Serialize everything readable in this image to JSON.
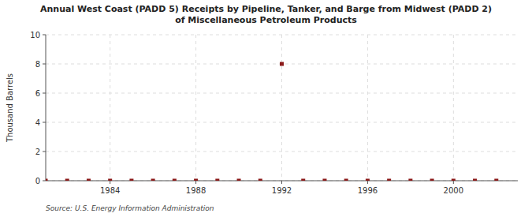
{
  "chart_data": {
    "type": "scatter",
    "title": "Annual West Coast (PADD 5) Receipts by Pipeline, Tanker, and Barge from Midwest (PADD 2)\nof Miscellaneous Petroleum Products",
    "y_label": "Thousand Barrels",
    "annotations": [
      "Source: U.S. Energy Information Administration"
    ],
    "x": [
      1981,
      1982,
      1983,
      1984,
      1985,
      1986,
      1987,
      1988,
      1989,
      1990,
      1991,
      1992,
      1993,
      1994,
      1995,
      1996,
      1997,
      1998,
      1999,
      2000,
      2001,
      2002
    ],
    "values": [
      0,
      0,
      0,
      0,
      0,
      0,
      0,
      0,
      0,
      0,
      0,
      8,
      0,
      0,
      0,
      0,
      0,
      0,
      0,
      0,
      0,
      0
    ],
    "color": "#8b1a1a",
    "marker": "square",
    "xlim": [
      1981.0,
      2003.0
    ],
    "ylim": [
      0,
      10
    ],
    "xticks": [
      1984,
      1988,
      1992,
      1996,
      2000
    ],
    "yticks": [
      0,
      2,
      4,
      6,
      8,
      10
    ],
    "grid": true
  }
}
